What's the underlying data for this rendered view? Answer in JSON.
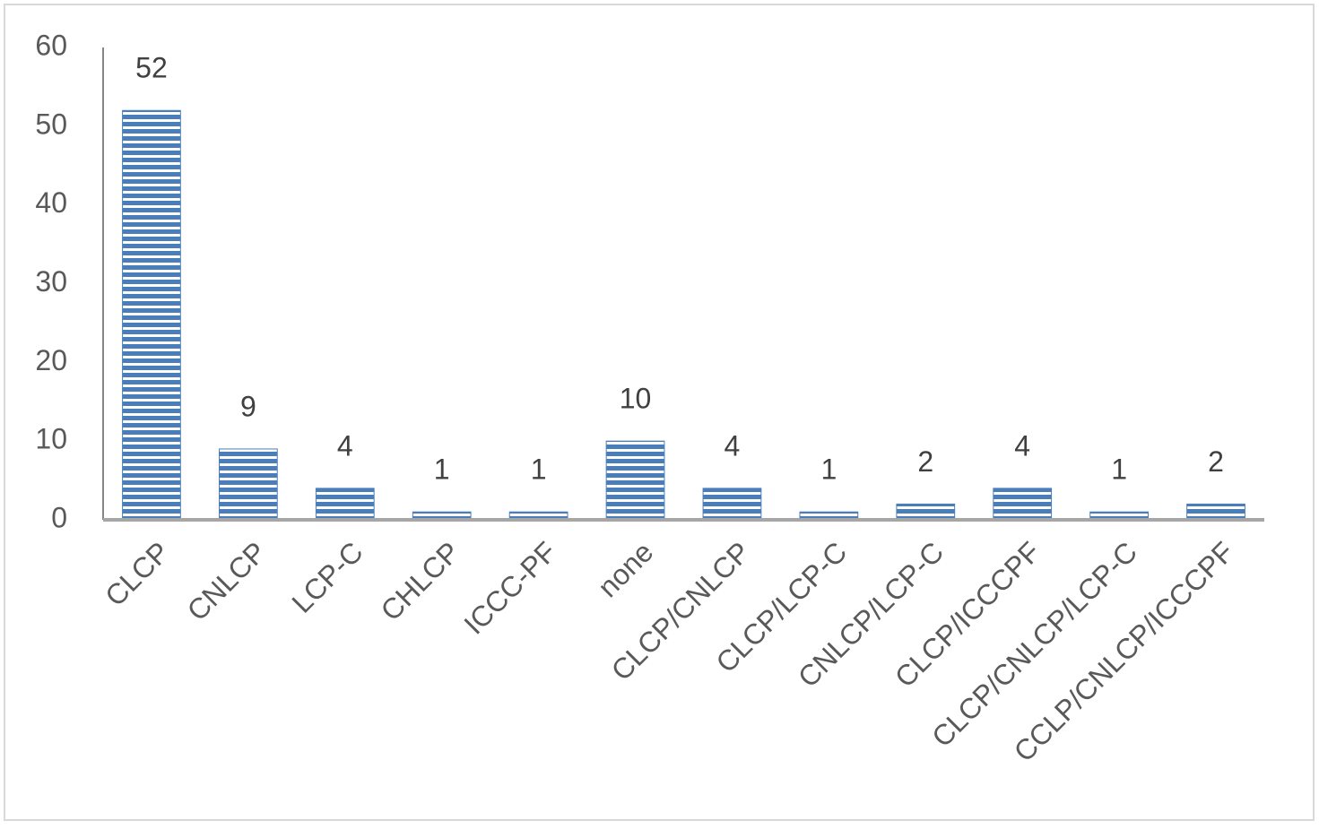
{
  "chart_data": {
    "type": "bar",
    "categories": [
      "CLCP",
      "CNLCP",
      "LCP-C",
      "CHLCP",
      "ICCC-PF",
      "none",
      "CLCP/CNLCP",
      "CLCP/LCP-C",
      "CNLCP/LCP-C",
      "CLCP/ICCCPF",
      "CLCP/CNLCP/LCP-C",
      "CCLP/CNLCP/ICCCPF"
    ],
    "values": [
      52,
      9,
      4,
      1,
      1,
      10,
      4,
      1,
      2,
      4,
      1,
      2
    ],
    "color": "#4a7ebb",
    "ylim": [
      0,
      60
    ],
    "yticks": [
      0,
      10,
      20,
      30,
      40,
      50,
      60
    ],
    "grid": false
  }
}
